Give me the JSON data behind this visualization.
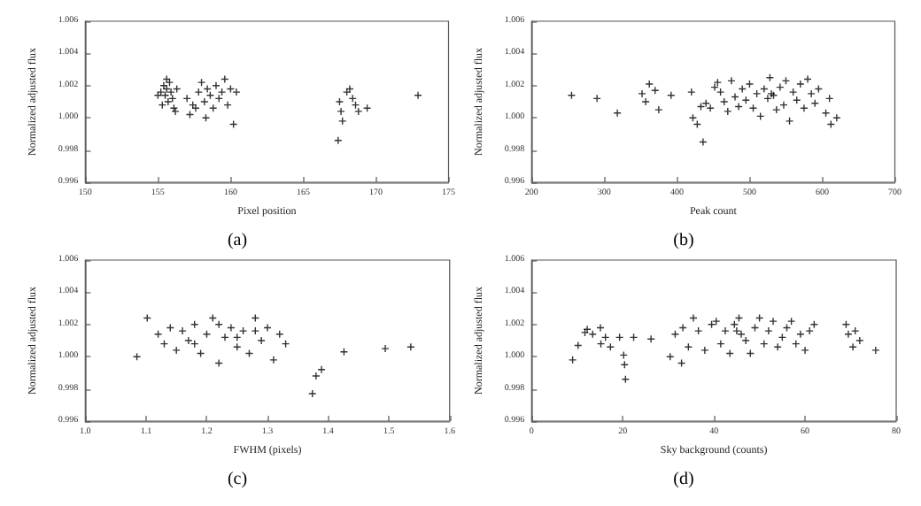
{
  "chart_data": [
    {
      "type": "scatter",
      "xlabel": "Pixel position",
      "ylabel": "Normalized adjusted flux",
      "annotations": [
        "(a)"
      ],
      "marker": "cross",
      "color": "#000000",
      "xlim": [
        150,
        175
      ],
      "xticks": [
        150,
        155,
        160,
        165,
        170,
        175
      ],
      "ylim": [
        0.996,
        1.006
      ],
      "yticks": [
        {
          "value": 0.996,
          "label": "0.996"
        },
        {
          "value": 0.998,
          "label": "0.998"
        },
        {
          "value": 1,
          "label": "1.000"
        },
        {
          "value": 1.002,
          "label": "1.002"
        },
        {
          "value": 1.004,
          "label": "1.004"
        },
        {
          "value": 1.006,
          "label": "1.006"
        }
      ],
      "x": [
        155.2,
        155.4,
        155.5,
        155.6,
        155.7,
        155.8,
        155.9,
        156.0,
        156.1,
        155.3,
        155.0,
        156.3,
        156.2,
        155.6,
        157.0,
        157.2,
        157.4,
        157.8,
        158.0,
        158.2,
        158.4,
        158.6,
        158.8,
        159.0,
        159.2,
        159.4,
        159.6,
        159.8,
        160.0,
        160.2,
        160.4,
        158.3,
        157.6,
        167.4,
        167.5,
        167.6,
        167.7,
        168.0,
        168.2,
        168.4,
        168.6,
        168.8,
        169.4,
        172.9
      ],
      "values": [
        1.0016,
        1.002,
        1.0014,
        1.0018,
        1.001,
        1.0022,
        1.0016,
        1.0012,
        1.0006,
        1.0008,
        1.0014,
        1.0018,
        1.0004,
        1.0024,
        1.0012,
        1.0002,
        1.0008,
        1.0016,
        1.0022,
        1.001,
        1.0018,
        1.0014,
        1.0006,
        1.002,
        1.0012,
        1.0016,
        1.0024,
        1.0008,
        1.0018,
        0.9996,
        1.0016,
        1.0,
        1.0006,
        0.9986,
        1.001,
        1.0004,
        0.9998,
        1.0016,
        1.0018,
        1.0012,
        1.0008,
        1.0004,
        1.0006,
        1.0014
      ]
    },
    {
      "type": "scatter",
      "xlabel": "Peak count",
      "ylabel": "Normalized adjusted flux",
      "annotations": [
        "(b)"
      ],
      "marker": "cross",
      "color": "#000000",
      "xlim": [
        200,
        700
      ],
      "xticks": [
        200,
        300,
        400,
        500,
        600,
        700
      ],
      "ylim": [
        0.996,
        1.006
      ],
      "yticks": [
        {
          "value": 0.996,
          "label": "0.996"
        },
        {
          "value": 0.998,
          "label": "0.998"
        },
        {
          "value": 1,
          "label": "1.000"
        },
        {
          "value": 1.002,
          "label": "1.002"
        },
        {
          "value": 1.004,
          "label": "1.004"
        },
        {
          "value": 1.006,
          "label": "1.006"
        }
      ],
      "x": [
        255,
        290,
        318,
        352,
        357,
        362,
        370,
        375,
        392,
        420,
        422,
        428,
        433,
        436,
        440,
        446,
        452,
        456,
        460,
        465,
        470,
        475,
        480,
        485,
        490,
        495,
        500,
        505,
        510,
        515,
        520,
        525,
        528,
        530,
        533,
        537,
        542,
        547,
        550,
        555,
        560,
        565,
        570,
        575,
        580,
        585,
        590,
        595,
        605,
        610,
        612,
        620
      ],
      "values": [
        1.0014,
        1.0012,
        1.0003,
        1.0015,
        1.001,
        1.0021,
        1.0017,
        1.0005,
        1.0014,
        1.0016,
        1.0,
        0.9996,
        1.0007,
        0.9985,
        1.0009,
        1.0006,
        1.0019,
        1.0022,
        1.0016,
        1.001,
        1.0004,
        1.0023,
        1.0013,
        1.0007,
        1.0018,
        1.0011,
        1.0021,
        1.0006,
        1.0015,
        1.0001,
        1.0018,
        1.0012,
        1.0025,
        1.0015,
        1.0014,
        1.0005,
        1.0019,
        1.0008,
        1.0023,
        0.9998,
        1.0016,
        1.0011,
        1.0021,
        1.0006,
        1.0024,
        1.0015,
        1.0009,
        1.0018,
        1.0003,
        1.0012,
        0.9996,
        1.0
      ]
    },
    {
      "type": "scatter",
      "xlabel": "FWHM (pixels)",
      "ylabel": "Normalized adjusted flux",
      "annotations": [
        "(c)"
      ],
      "marker": "cross",
      "color": "#000000",
      "xlim": [
        1.0,
        1.6
      ],
      "xticks": [
        {
          "value": 1.0,
          "label": "1.0"
        },
        {
          "value": 1.1,
          "label": "1.1"
        },
        {
          "value": 1.2,
          "label": "1.2"
        },
        {
          "value": 1.3,
          "label": "1.3"
        },
        {
          "value": 1.4,
          "label": "1.4"
        },
        {
          "value": 1.5,
          "label": "1.5"
        },
        {
          "value": 1.6,
          "label": "1.6"
        }
      ],
      "ylim": [
        0.996,
        1.006
      ],
      "yticks": [
        {
          "value": 0.996,
          "label": "0.996"
        },
        {
          "value": 0.998,
          "label": "0.998"
        },
        {
          "value": 1,
          "label": "1.000"
        },
        {
          "value": 1.002,
          "label": "1.002"
        },
        {
          "value": 1.004,
          "label": "1.004"
        },
        {
          "value": 1.006,
          "label": "1.006"
        }
      ],
      "x": [
        1.085,
        1.102,
        1.12,
        1.13,
        1.14,
        1.15,
        1.16,
        1.17,
        1.18,
        1.19,
        1.2,
        1.21,
        1.22,
        1.23,
        1.24,
        1.25,
        1.26,
        1.27,
        1.28,
        1.29,
        1.3,
        1.31,
        1.32,
        1.33,
        1.28,
        1.22,
        1.18,
        1.25,
        1.374,
        1.38,
        1.389,
        1.426,
        1.494,
        1.536
      ],
      "values": [
        1.0,
        1.0024,
        1.0014,
        1.0008,
        1.0018,
        1.0004,
        1.0016,
        1.001,
        1.002,
        1.0002,
        1.0014,
        1.0024,
        0.9996,
        1.0012,
        1.0018,
        1.0006,
        1.0016,
        1.0002,
        1.0024,
        1.001,
        1.0018,
        0.9998,
        1.0014,
        1.0008,
        1.0016,
        1.002,
        1.0008,
        1.0012,
        0.9977,
        0.9988,
        0.9992,
        1.0003,
        1.0005,
        1.0006
      ]
    },
    {
      "type": "scatter",
      "xlabel": "Sky background (counts)",
      "ylabel": "Normalized adjusted flux",
      "annotations": [
        "(d)"
      ],
      "marker": "cross",
      "color": "#000000",
      "xlim": [
        0,
        80
      ],
      "xticks": [
        0,
        20,
        40,
        60,
        80
      ],
      "ylim": [
        0.996,
        1.006
      ],
      "yticks": [
        {
          "value": 0.996,
          "label": "0.996"
        },
        {
          "value": 0.998,
          "label": "0.998"
        },
        {
          "value": 1,
          "label": "1.000"
        },
        {
          "value": 1.002,
          "label": "1.002"
        },
        {
          "value": 1.004,
          "label": "1.004"
        },
        {
          "value": 1.006,
          "label": "1.006"
        }
      ],
      "x": [
        9,
        10.2,
        11.7,
        12.2,
        13.4,
        15.1,
        15.2,
        16.2,
        17.3,
        19.3,
        20.2,
        20.4,
        20.6,
        22.4,
        26.2,
        30.4,
        31.5,
        32.9,
        33.2,
        34.4,
        35.5,
        36.6,
        38,
        39.5,
        40.5,
        41.5,
        42.5,
        43.5,
        44.5,
        45,
        45.5,
        46,
        47,
        48,
        49,
        50,
        51,
        52,
        53,
        54,
        55,
        56,
        57,
        58,
        59,
        60,
        61,
        62,
        69,
        69.5,
        70.5,
        71,
        72,
        75.5
      ],
      "values": [
        0.9998,
        1.0007,
        1.0015,
        1.0017,
        1.0014,
        1.0018,
        1.0008,
        1.0012,
        1.0006,
        1.0012,
        1.0001,
        0.9995,
        0.9986,
        1.0012,
        1.0011,
        1.0,
        1.0014,
        0.9996,
        1.0018,
        1.0006,
        1.0024,
        1.0016,
        1.0004,
        1.002,
        1.0022,
        1.0008,
        1.0016,
        1.0002,
        1.002,
        1.0016,
        1.0024,
        1.0014,
        1.001,
        1.0002,
        1.0018,
        1.0024,
        1.0008,
        1.0016,
        1.0022,
        1.0006,
        1.0012,
        1.0018,
        1.0022,
        1.0008,
        1.0014,
        1.0004,
        1.0016,
        1.002,
        1.002,
        1.0014,
        1.0006,
        1.0016,
        1.001,
        1.0004
      ]
    }
  ]
}
